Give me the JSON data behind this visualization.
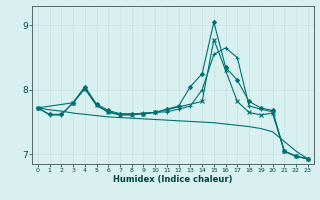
{
  "xlabel": "Humidex (Indice chaleur)",
  "bg_color": "#d8f0f0",
  "grid_color": "#c8e0e0",
  "line_color": "#007070",
  "xlim": [
    -0.5,
    23.5
  ],
  "ylim": [
    6.85,
    9.3
  ],
  "yticks": [
    7,
    8,
    9
  ],
  "xticks": [
    0,
    1,
    2,
    3,
    4,
    5,
    6,
    7,
    8,
    9,
    10,
    11,
    12,
    13,
    14,
    15,
    16,
    17,
    18,
    19,
    20,
    21,
    22,
    23
  ],
  "series": [
    {
      "x": [
        0,
        1,
        2,
        3,
        4,
        5,
        6,
        7,
        8,
        9,
        10,
        11,
        12,
        13,
        14,
        15,
        16,
        17,
        18,
        19,
        20,
        21,
        22,
        23
      ],
      "y": [
        7.72,
        7.62,
        7.62,
        7.8,
        8.05,
        7.78,
        7.68,
        7.63,
        7.63,
        7.63,
        7.65,
        7.7,
        7.75,
        8.05,
        8.25,
        9.05,
        8.35,
        8.15,
        7.82,
        7.72,
        7.68,
        7.05,
        6.97,
        6.93
      ],
      "marker": "D",
      "markersize": 2.0,
      "lw": 0.8
    },
    {
      "x": [
        0,
        1,
        2,
        3,
        4,
        5,
        6,
        7,
        8,
        9,
        10,
        11,
        12,
        13,
        14,
        15,
        16,
        17,
        18,
        19,
        20,
        21,
        22,
        23
      ],
      "y": [
        7.72,
        7.61,
        7.61,
        7.8,
        8.02,
        7.76,
        7.66,
        7.62,
        7.62,
        7.64,
        7.65,
        7.66,
        7.7,
        7.75,
        8.0,
        8.55,
        8.65,
        8.5,
        7.75,
        7.7,
        7.66,
        7.05,
        6.97,
        6.93
      ],
      "marker": "+",
      "markersize": 3.5,
      "lw": 0.8
    },
    {
      "x": [
        0,
        3,
        4,
        5,
        6,
        7,
        8,
        9,
        10,
        14,
        15,
        16,
        17,
        18,
        19,
        20,
        21,
        22,
        23
      ],
      "y": [
        7.72,
        7.8,
        8.02,
        7.76,
        7.65,
        7.61,
        7.61,
        7.63,
        7.65,
        7.82,
        8.78,
        8.3,
        7.82,
        7.65,
        7.61,
        7.64,
        7.05,
        6.97,
        6.93
      ],
      "marker": "x",
      "markersize": 3.0,
      "lw": 0.8
    },
    {
      "x": [
        0,
        1,
        2,
        3,
        4,
        5,
        6,
        7,
        8,
        9,
        10,
        11,
        12,
        13,
        14,
        15,
        16,
        17,
        18,
        19,
        20,
        21,
        22,
        23
      ],
      "y": [
        7.72,
        7.69,
        7.67,
        7.64,
        7.62,
        7.6,
        7.58,
        7.57,
        7.56,
        7.55,
        7.54,
        7.53,
        7.52,
        7.51,
        7.5,
        7.49,
        7.47,
        7.45,
        7.43,
        7.4,
        7.35,
        7.2,
        7.05,
        6.93
      ],
      "marker": null,
      "markersize": 0,
      "lw": 0.8
    }
  ]
}
